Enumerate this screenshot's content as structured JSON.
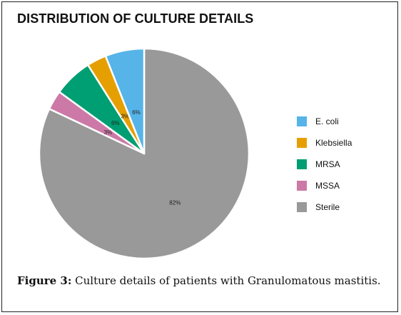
{
  "chart_data": {
    "type": "pie",
    "title": "DISTRIBUTION OF CULTURE DETAILS",
    "categories": [
      "E. coli",
      "Klebsiella",
      "MRSA",
      "MSSA",
      "Sterile"
    ],
    "values": [
      6,
      3,
      6,
      3,
      82
    ],
    "labels": [
      "6%",
      "3%",
      "6%",
      "3%",
      "82%"
    ],
    "colors": [
      "#56b4e9",
      "#e69f00",
      "#009e73",
      "#cc79a7",
      "#999999"
    ],
    "legend_position": "right"
  },
  "caption": {
    "label": "Figure 3:",
    "text": " Culture details of patients with Granulomatous mastitis."
  }
}
